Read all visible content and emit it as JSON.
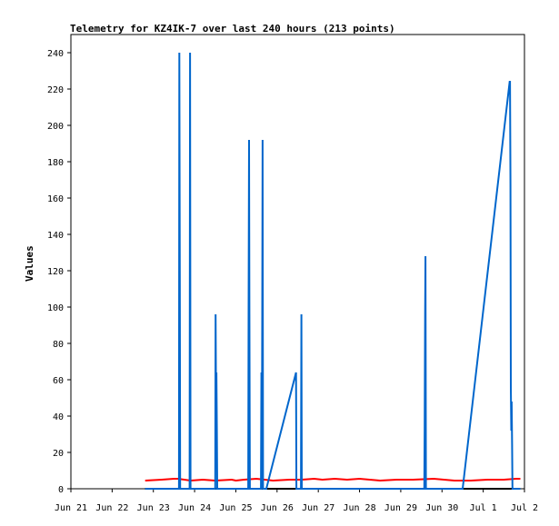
{
  "chart_data": {
    "type": "line",
    "title": "Telemetry for KZ4IK-7 over last 240 hours (213 points)",
    "xlabel": "",
    "ylabel": "Values",
    "x_unit": "date",
    "xlim": [
      "Jun 21",
      "Jul 2"
    ],
    "ylim": [
      0,
      250
    ],
    "grid": false,
    "legend": "none",
    "x_tick_labels": [
      "Jun 21",
      "Jun 22",
      "Jun 23",
      "Jun 24",
      "Jun 25",
      "Jun 26",
      "Jun 27",
      "Jun 28",
      "Jun 29",
      "Jun 30",
      "Jul 1",
      "Jul 2"
    ],
    "y_ticks": [
      0,
      20,
      40,
      60,
      80,
      100,
      120,
      140,
      160,
      180,
      200,
      220,
      240
    ],
    "series": [
      {
        "color": "#ff0000",
        "x": [
          1.8,
          2.2,
          2.5,
          2.6,
          2.9,
          3.2,
          3.5,
          3.9,
          4.0,
          4.2,
          4.5,
          4.9,
          5.3,
          5.6,
          5.9,
          6.1,
          6.4,
          6.7,
          7.0,
          7.5,
          7.9,
          8.3,
          8.8,
          9.3,
          9.7,
          10.1,
          10.5,
          10.8,
          10.9
        ],
        "y": [
          4.5,
          5,
          5.5,
          5.5,
          4.5,
          5,
          4.5,
          5,
          4.5,
          5,
          5.5,
          4.5,
          5,
          5,
          5.5,
          5,
          5.5,
          5,
          5.5,
          4.5,
          5,
          5,
          5.5,
          4.5,
          4.5,
          5,
          5,
          5.5,
          5.5
        ]
      },
      {
        "color": "#000000",
        "x": [
          1.8,
          10.9
        ],
        "y": [
          0,
          0
        ]
      },
      {
        "color": "#0066cc",
        "x": [
          1.8,
          2.62,
          2.63,
          2.64,
          2.65,
          2.66,
          2.68,
          2.69,
          2.88,
          2.89,
          2.9,
          2.91,
          3.5,
          3.51,
          3.52,
          3.53,
          3.54,
          3.55,
          3.56,
          4.3,
          4.31,
          4.32,
          4.33,
          4.34,
          4.35,
          4.6,
          4.61,
          4.62,
          4.63,
          4.64,
          4.65,
          4.66,
          4.74,
          5.46,
          5.47,
          5.58,
          5.59,
          5.6,
          5.61,
          8.57,
          8.58,
          8.59,
          8.6,
          8.61,
          8.62,
          9.5,
          10.64,
          10.65,
          10.66,
          10.67,
          10.68,
          10.69,
          10.7,
          10.71,
          10.72,
          10.73,
          10.74,
          10.9
        ],
        "y": [
          0,
          0,
          240,
          120,
          0,
          0,
          0,
          0,
          0,
          240,
          0,
          0,
          0,
          96,
          48,
          64,
          32,
          0,
          0,
          0,
          96,
          192,
          96,
          0,
          0,
          0,
          0,
          64,
          0,
          96,
          192,
          0,
          0,
          64,
          0,
          0,
          96,
          0,
          0,
          0,
          32,
          96,
          128,
          0,
          0,
          0,
          224,
          224,
          168,
          56,
          32,
          48,
          24,
          0,
          0,
          0,
          0,
          0
        ]
      }
    ]
  }
}
